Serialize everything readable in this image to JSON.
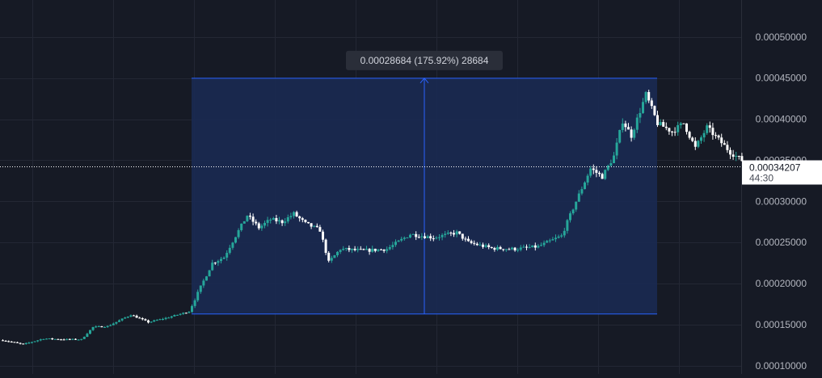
{
  "chart_data": {
    "type": "candlestick",
    "title": "",
    "xlabel": "",
    "ylabel": "",
    "ylim": [
      9e-05,
      0.000545
    ],
    "y_ticks": [
      "0.00010000",
      "0.00015000",
      "0.00020000",
      "0.00025000",
      "0.00030000",
      "0.00035000",
      "0.00040000",
      "0.00045000",
      "0.00050000"
    ],
    "y_tick_values": [
      0.0001,
      0.00015,
      0.0002,
      0.00025,
      0.0003,
      0.00035,
      0.0004,
      0.00045,
      0.0005
    ],
    "grid": true,
    "colors": {
      "background": "#161a25",
      "grid": "#232734",
      "up": "#26a69a",
      "down": "#ffffff",
      "range_fill": "#1a2a52",
      "range_border": "#2962ff",
      "axis_text": "#b2b5be",
      "tooltip_bg": "#2a2e39",
      "price_line": "#ffffff"
    },
    "price_path": [
      [
        0.0,
        0.000131
      ],
      [
        3.5,
        0.000126
      ],
      [
        7.0,
        0.000133
      ],
      [
        10.5,
        0.000132
      ],
      [
        13.5,
        0.000132
      ],
      [
        15.5,
        0.000147
      ],
      [
        18.0,
        0.000148
      ],
      [
        22.0,
        0.000162
      ],
      [
        25.0,
        0.000153
      ],
      [
        28.0,
        0.000158
      ],
      [
        32.0,
        0.000166
      ],
      [
        34.0,
        0.000196
      ],
      [
        36.0,
        0.000225
      ],
      [
        38.0,
        0.000232
      ],
      [
        40.0,
        0.000258
      ],
      [
        42.0,
        0.000283
      ],
      [
        44.0,
        0.000268
      ],
      [
        46.0,
        0.000278
      ],
      [
        48.0,
        0.000275
      ],
      [
        50.0,
        0.000285
      ],
      [
        52.0,
        0.000273
      ],
      [
        54.5,
        0.000265
      ],
      [
        56.0,
        0.000226
      ],
      [
        58.0,
        0.000242
      ],
      [
        62.0,
        0.00024
      ],
      [
        66.0,
        0.000242
      ],
      [
        70.0,
        0.00026
      ],
      [
        74.0,
        0.000256
      ],
      [
        78.0,
        0.000262
      ],
      [
        80.0,
        0.00025
      ],
      [
        84.0,
        0.000243
      ],
      [
        88.0,
        0.000242
      ],
      [
        92.0,
        0.000245
      ],
      [
        96.0,
        0.000258
      ],
      [
        98.5,
        0.0003
      ],
      [
        101.0,
        0.00034
      ],
      [
        103.0,
        0.00033
      ],
      [
        105.0,
        0.000355
      ],
      [
        106.5,
        0.000398
      ],
      [
        108.0,
        0.00038
      ],
      [
        110.5,
        0.00043
      ],
      [
        112.5,
        0.000395
      ],
      [
        115.0,
        0.000385
      ],
      [
        117.0,
        0.000395
      ],
      [
        119.0,
        0.000365
      ],
      [
        121.0,
        0.00039
      ],
      [
        123.0,
        0.000375
      ],
      [
        125.0,
        0.00036
      ],
      [
        127.0,
        0.00035
      ],
      [
        128.5,
        0.000342
      ]
    ],
    "range_measure": {
      "from_value": 0.000163,
      "to_value": 0.00044984,
      "label": "0.00028684 (175.92%) 28684"
    },
    "last_price": {
      "value": 0.00034207,
      "label": "0.00034207",
      "countdown": "44:30"
    }
  }
}
